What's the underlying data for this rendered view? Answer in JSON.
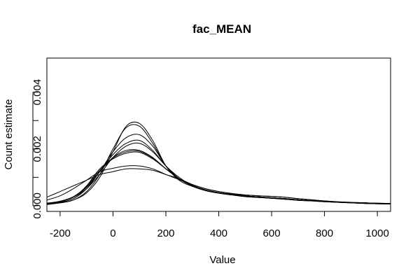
{
  "chart_data": {
    "type": "line",
    "title": "fac_MEAN",
    "xlabel": "Value",
    "ylabel": "Count estimate",
    "xlim": [
      -250,
      1050
    ],
    "ylim": [
      -0.0002,
      0.0052
    ],
    "x_ticks": [
      -200,
      0,
      200,
      400,
      600,
      800,
      1000
    ],
    "y_ticks": [
      0.0,
      0.002,
      0.004
    ],
    "y_tick_labels": [
      "0.000",
      "0.002",
      "0.004"
    ],
    "grid": false,
    "legend": "none",
    "x": [
      -250,
      -200,
      -150,
      -100,
      -50,
      0,
      50,
      100,
      150,
      200,
      250,
      300,
      350,
      400,
      450,
      500,
      550,
      600,
      650,
      700,
      750,
      800,
      850,
      900,
      950,
      1000,
      1050
    ],
    "series": [
      {
        "values": [
          5e-05,
          0.0001,
          0.0002,
          0.0005,
          0.0011,
          0.002,
          0.00275,
          0.0028,
          0.0022,
          0.0014,
          0.00095,
          0.0007,
          0.00055,
          0.00045,
          0.0004,
          0.00033,
          0.0003,
          0.00027,
          0.00023,
          0.0002,
          0.00018,
          0.00015,
          0.00012,
          0.0001,
          8e-05,
          7e-05,
          6e-05
        ]
      },
      {
        "values": [
          4e-05,
          0.0001,
          0.0002,
          0.00045,
          0.001,
          0.0019,
          0.0028,
          0.0029,
          0.0023,
          0.0014,
          0.0009,
          0.00068,
          0.00053,
          0.00044,
          0.00038,
          0.00032,
          0.00029,
          0.00026,
          0.00023,
          0.00019,
          0.00017,
          0.00014,
          0.00012,
          0.0001,
          8e-05,
          7e-05,
          6e-05
        ]
      },
      {
        "values": [
          6e-05,
          0.00012,
          0.00025,
          0.0006,
          0.0012,
          0.0019,
          0.0024,
          0.0025,
          0.0021,
          0.0014,
          0.00095,
          0.0007,
          0.00055,
          0.00045,
          0.0004,
          0.00034,
          0.0003,
          0.00027,
          0.00024,
          0.0002,
          0.00018,
          0.00015,
          0.00013,
          0.00011,
          9e-05,
          8e-05,
          7e-05
        ]
      },
      {
        "values": [
          8e-05,
          0.00015,
          0.0003,
          0.0006,
          0.0011,
          0.0017,
          0.0021,
          0.0022,
          0.0019,
          0.0014,
          0.001,
          0.00072,
          0.00056,
          0.00046,
          0.0004,
          0.00035,
          0.00031,
          0.00028,
          0.00025,
          0.00021,
          0.00018,
          0.00016,
          0.00013,
          0.00011,
          0.0001,
          8e-05,
          7e-05
        ]
      },
      {
        "values": [
          7e-05,
          0.00014,
          0.0003,
          0.00065,
          0.0012,
          0.0017,
          0.00195,
          0.00195,
          0.0017,
          0.0013,
          0.00095,
          0.0007,
          0.00055,
          0.00046,
          0.0004,
          0.00035,
          0.00031,
          0.00028,
          0.00025,
          0.00021,
          0.00018,
          0.00016,
          0.00013,
          0.00011,
          0.0001,
          8e-05,
          7e-05
        ]
      },
      {
        "values": [
          9e-05,
          0.00016,
          0.00032,
          0.00068,
          0.00125,
          0.00168,
          0.0019,
          0.00192,
          0.00168,
          0.0013,
          0.00095,
          0.0007,
          0.00055,
          0.00046,
          0.0004,
          0.00035,
          0.00031,
          0.00028,
          0.00025,
          0.00021,
          0.00018,
          0.00016,
          0.00013,
          0.00011,
          0.0001,
          8e-05,
          7e-05
        ]
      },
      {
        "values": [
          8e-05,
          0.00015,
          0.0003,
          0.0007,
          0.0013,
          0.00165,
          0.00185,
          0.00188,
          0.00165,
          0.0013,
          0.00096,
          0.00071,
          0.00056,
          0.00046,
          0.0004,
          0.00035,
          0.00031,
          0.00028,
          0.00025,
          0.00021,
          0.00018,
          0.00016,
          0.00013,
          0.00011,
          0.0001,
          8e-05,
          7e-05
        ]
      },
      {
        "values": [
          0.0003,
          0.0005,
          0.0007,
          0.0009,
          0.0011,
          0.0012,
          0.0013,
          0.0013,
          0.00125,
          0.0011,
          0.00095,
          0.00075,
          0.0006,
          0.0005,
          0.00043,
          0.00038,
          0.00035,
          0.00033,
          0.0003,
          0.00025,
          0.00021,
          0.00017,
          0.00014,
          0.00012,
          0.0001,
          9e-05,
          8e-05
        ]
      },
      {
        "values": [
          0.0002,
          0.00035,
          0.0006,
          0.0009,
          0.0012,
          0.00132,
          0.0014,
          0.0014,
          0.0013,
          0.0011,
          0.00092,
          0.00074,
          0.0006,
          0.0005,
          0.00043,
          0.00038,
          0.00035,
          0.00033,
          0.0003,
          0.00025,
          0.00021,
          0.00017,
          0.00014,
          0.00012,
          0.0001,
          9e-05,
          8e-05
        ]
      },
      {
        "values": [
          5e-05,
          0.00012,
          0.00025,
          0.0006,
          0.0012,
          0.0018,
          0.0022,
          0.0023,
          0.00195,
          0.0014,
          0.00095,
          0.0007,
          0.00054,
          0.00044,
          0.00038,
          0.00032,
          0.00029,
          0.00026,
          0.00023,
          0.00019,
          0.00017,
          0.00014,
          0.00012,
          0.0001,
          8e-05,
          7e-05,
          6e-05
        ]
      }
    ]
  }
}
